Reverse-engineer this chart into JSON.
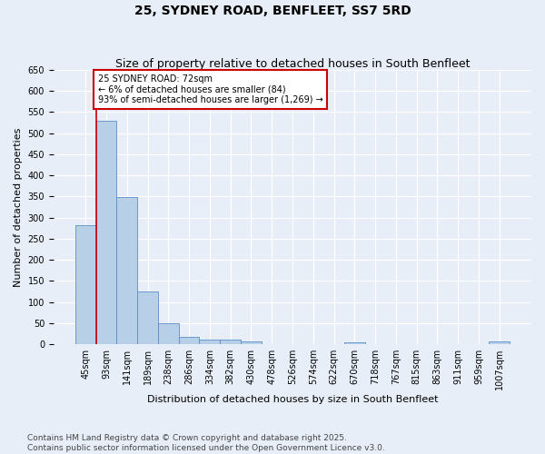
{
  "title": "25, SYDNEY ROAD, BENFLEET, SS7 5RD",
  "subtitle": "Size of property relative to detached houses in South Benfleet",
  "xlabel": "Distribution of detached houses by size in South Benfleet",
  "ylabel": "Number of detached properties",
  "footer": "Contains HM Land Registry data © Crown copyright and database right 2025.\nContains public sector information licensed under the Open Government Licence v3.0.",
  "categories": [
    "45sqm",
    "93sqm",
    "141sqm",
    "189sqm",
    "238sqm",
    "286sqm",
    "334sqm",
    "382sqm",
    "430sqm",
    "478sqm",
    "526sqm",
    "574sqm",
    "622sqm",
    "670sqm",
    "718sqm",
    "767sqm",
    "815sqm",
    "863sqm",
    "911sqm",
    "959sqm",
    "1007sqm"
  ],
  "values": [
    283,
    530,
    348,
    125,
    50,
    17,
    11,
    11,
    7,
    0,
    0,
    0,
    0,
    5,
    0,
    0,
    0,
    0,
    0,
    0,
    6
  ],
  "bar_color": "#b8cfe8",
  "bar_edge_color": "#5b8ec4",
  "bg_color": "#e8eef8",
  "plot_bg_color": "#e8eef8",
  "grid_color": "#ffffff",
  "annotation_text": "25 SYDNEY ROAD: 72sqm\n← 6% of detached houses are smaller (84)\n93% of semi-detached houses are larger (1,269) →",
  "annotation_box_color": "#ffffff",
  "annotation_box_edge": "#cc0000",
  "vline_color": "#cc0000",
  "vline_x": 0.5,
  "ylim": [
    0,
    650
  ],
  "yticks": [
    0,
    50,
    100,
    150,
    200,
    250,
    300,
    350,
    400,
    450,
    500,
    550,
    600,
    650
  ],
  "title_fontsize": 10,
  "subtitle_fontsize": 9,
  "axis_label_fontsize": 8,
  "tick_fontsize": 7,
  "annotation_fontsize": 7,
  "footer_fontsize": 6.5
}
